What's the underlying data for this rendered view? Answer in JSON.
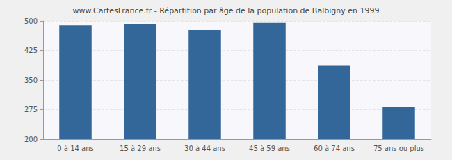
{
  "chart_data": {
    "type": "bar",
    "title": "www.CartesFrance.fr - Répartition par âge de la population de Balbigny en 1999",
    "categories": [
      "0 à 14 ans",
      "15 à 29 ans",
      "30 à 44 ans",
      "45 à 59 ans",
      "60 à 74 ans",
      "75 ans ou plus"
    ],
    "values": [
      489,
      492,
      477,
      495,
      386,
      281
    ],
    "color": "#336699",
    "ylim": [
      200,
      500
    ],
    "yticks": [
      200,
      275,
      350,
      425,
      500
    ],
    "grid": true
  }
}
